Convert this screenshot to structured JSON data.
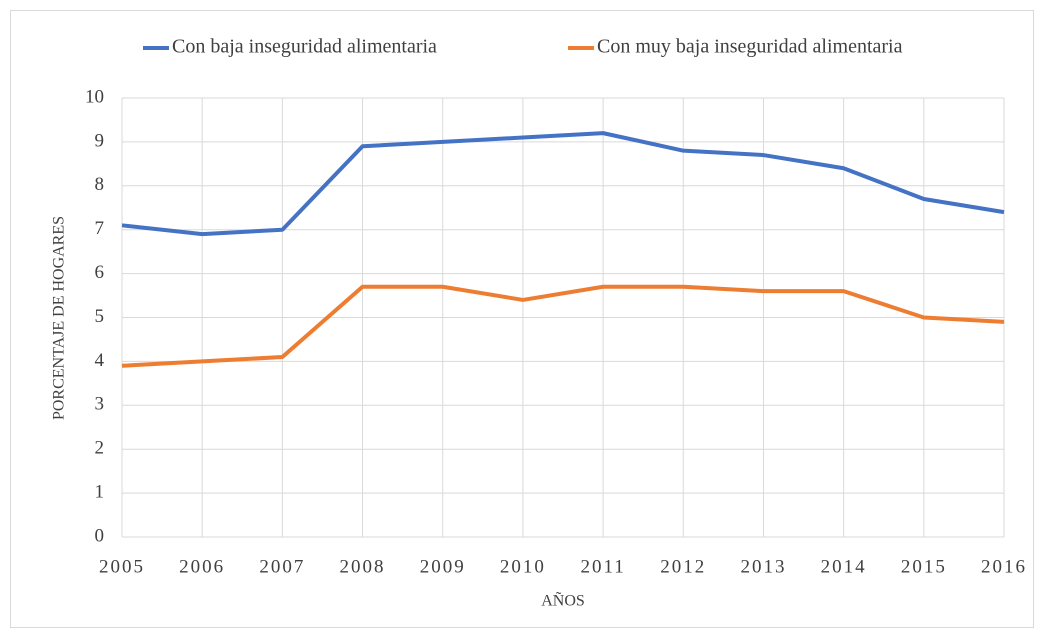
{
  "chart_data": {
    "type": "line",
    "x": [
      2005,
      2006,
      2007,
      2008,
      2009,
      2010,
      2011,
      2012,
      2013,
      2014,
      2015,
      2016
    ],
    "series": [
      {
        "name": "Con baja inseguridad alimentaria",
        "color": "#4472c4",
        "values": [
          7.1,
          6.9,
          7.0,
          8.9,
          9.0,
          9.1,
          9.2,
          8.8,
          8.7,
          8.4,
          7.7,
          7.4
        ]
      },
      {
        "name": "Con muy baja inseguridad alimentaria",
        "color": "#ed7d31",
        "values": [
          3.9,
          4.0,
          4.1,
          5.7,
          5.7,
          5.4,
          5.7,
          5.7,
          5.6,
          5.6,
          5.0,
          4.9
        ]
      }
    ],
    "xlabel": "AÑOS",
    "ylabel": "PORCENTAJE DE HOGARES",
    "xlim": [
      2005,
      2016
    ],
    "xticks": [
      2005,
      2006,
      2007,
      2008,
      2009,
      2010,
      2011,
      2012,
      2013,
      2014,
      2015,
      2016
    ],
    "ylim": [
      0,
      10
    ],
    "yticks": [
      0,
      1,
      2,
      3,
      4,
      5,
      6,
      7,
      8,
      9,
      10
    ],
    "grid": true,
    "legend": "top"
  }
}
